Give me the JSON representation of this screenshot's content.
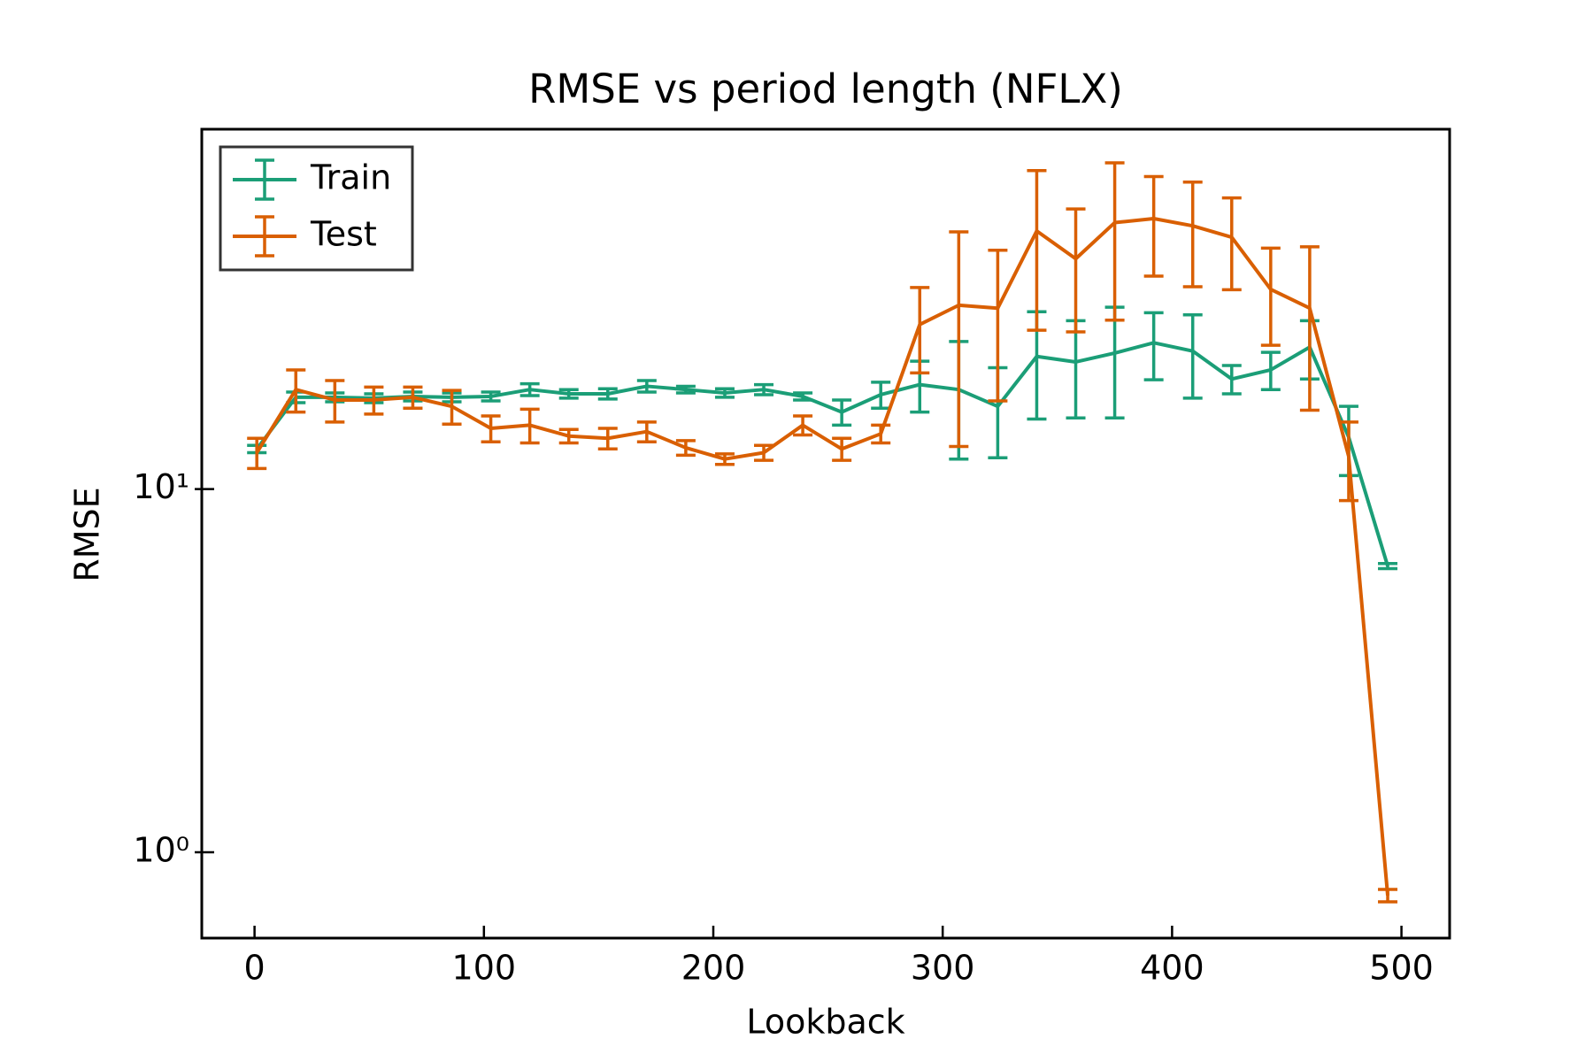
{
  "chart_data": {
    "type": "line",
    "title": "RMSE vs period length (NFLX)",
    "xlabel": "Lookback",
    "ylabel": "RMSE",
    "x": [
      1,
      18,
      35,
      52,
      69,
      86,
      103,
      120,
      137,
      154,
      171,
      188,
      205,
      222,
      239,
      256,
      273,
      290,
      307,
      324,
      341,
      358,
      375,
      392,
      409,
      426,
      443,
      460,
      477,
      494
    ],
    "series": [
      {
        "name": "Train",
        "color": "#1b9e77",
        "values": [
          12.9,
          17.9,
          17.9,
          17.8,
          18.0,
          17.9,
          18.0,
          18.8,
          18.3,
          18.3,
          19.2,
          18.8,
          18.4,
          18.8,
          18.0,
          16.3,
          18.2,
          19.4,
          18.8,
          16.9,
          23.2,
          22.4,
          23.7,
          25.3,
          24.0,
          20.1,
          21.3,
          24.6,
          13.9,
          6.14
        ],
        "errors": [
          0.3,
          0.6,
          0.5,
          0.5,
          0.5,
          0.5,
          0.5,
          0.7,
          0.5,
          0.6,
          0.7,
          0.4,
          0.5,
          0.6,
          0.4,
          1.3,
          1.5,
          3.1,
          6.7,
          4.7,
          7.6,
          6.7,
          8.0,
          5.3,
          6.2,
          1.8,
          2.5,
          4.5,
          3.0,
          0.1
        ]
      },
      {
        "name": "Test",
        "color": "#d95f02",
        "values": [
          12.6,
          18.8,
          17.6,
          17.6,
          17.9,
          16.9,
          14.7,
          15.0,
          14.0,
          13.8,
          14.4,
          13.0,
          12.1,
          12.6,
          15.0,
          12.9,
          14.2,
          28.4,
          32.1,
          31.5,
          51.4,
          43.1,
          54.2,
          55.6,
          53.1,
          49.4,
          35.5,
          31.5,
          12.3,
          0.76
        ],
        "errors": [
          1.2,
          2.5,
          2.3,
          1.5,
          1.2,
          1.8,
          1.2,
          1.6,
          0.6,
          0.9,
          0.9,
          0.6,
          0.4,
          0.6,
          0.9,
          0.9,
          0.8,
          7.5,
          19,
          14,
          24,
          16,
          25,
          17,
          17,
          14,
          10.6,
          15,
          3.0,
          0.03
        ]
      }
    ],
    "xlim": [
      -23,
      521
    ],
    "xticks": [
      0,
      100,
      200,
      300,
      400,
      500
    ],
    "ylim": [
      0.58,
      98
    ],
    "yticks": [
      {
        "value": 1,
        "label": "10⁰"
      },
      {
        "value": 10,
        "label": "10¹"
      }
    ],
    "log_y": true,
    "legend": "upper left"
  }
}
